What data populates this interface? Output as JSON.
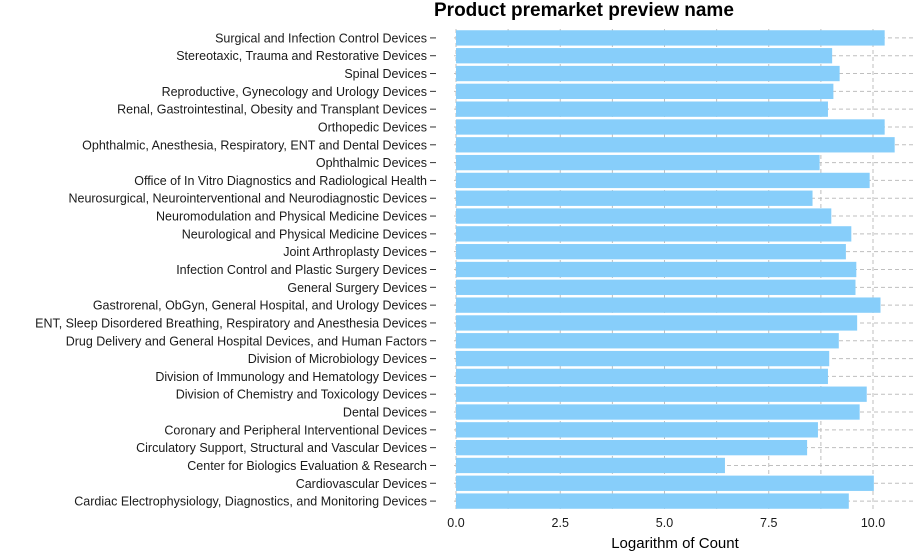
{
  "chart_data": {
    "type": "bar",
    "orientation": "horizontal",
    "title": "Product premarket preview name",
    "xlabel": "Logarithm of Count",
    "ylabel": "",
    "xlim": [
      0,
      11
    ],
    "x_ticks": [
      "0.0",
      "2.5",
      "5.0",
      "7.5",
      "10.0"
    ],
    "grid": true,
    "bar_color": "#87CEFA",
    "grid_color": "#bfbfbf",
    "categories": [
      "Surgical and Infection Control Devices",
      "Stereotaxic, Trauma and Restorative Devices",
      "Spinal Devices",
      "Reproductive, Gynecology and Urology Devices",
      "Renal, Gastrointestinal, Obesity and Transplant Devices",
      "Orthopedic Devices",
      "Ophthalmic, Anesthesia, Respiratory, ENT and Dental Devices",
      "Ophthalmic Devices",
      "Office of In Vitro Diagnostics and Radiological Health",
      "Neurosurgical, Neurointerventional and Neurodiagnostic Devices",
      "Neuromodulation and Physical Medicine Devices",
      "Neurological and Physical Medicine Devices",
      "Joint Arthroplasty Devices",
      "Infection Control and Plastic Surgery Devices",
      "General Surgery Devices",
      "Gastrorenal, ObGyn, General Hospital, and Urology Devices",
      "ENT, Sleep Disordered Breathing, Respiratory and Anesthesia Devices",
      "Drug Delivery and General Hospital Devices, and Human Factors",
      "Division of Microbiology Devices",
      "Division of Immunology and Hematology Devices",
      "Division of Chemistry and Toxicology Devices",
      "Dental Devices",
      "Coronary and Peripheral Interventional Devices",
      "Circulatory Support, Structural and Vascular Devices",
      "Center for Biologics Evaluation & Research",
      "Cardiovascular Devices",
      "Cardiac Electrophysiology, Diagnostics, and Monitoring Devices"
    ],
    "values": [
      10.28,
      9.02,
      9.2,
      9.05,
      8.92,
      10.28,
      10.52,
      8.72,
      9.92,
      8.55,
      9.0,
      9.48,
      9.35,
      9.6,
      9.58,
      10.18,
      9.62,
      9.18,
      8.95,
      8.92,
      9.85,
      9.68,
      8.68,
      8.42,
      6.45,
      10.02,
      9.42
    ]
  }
}
